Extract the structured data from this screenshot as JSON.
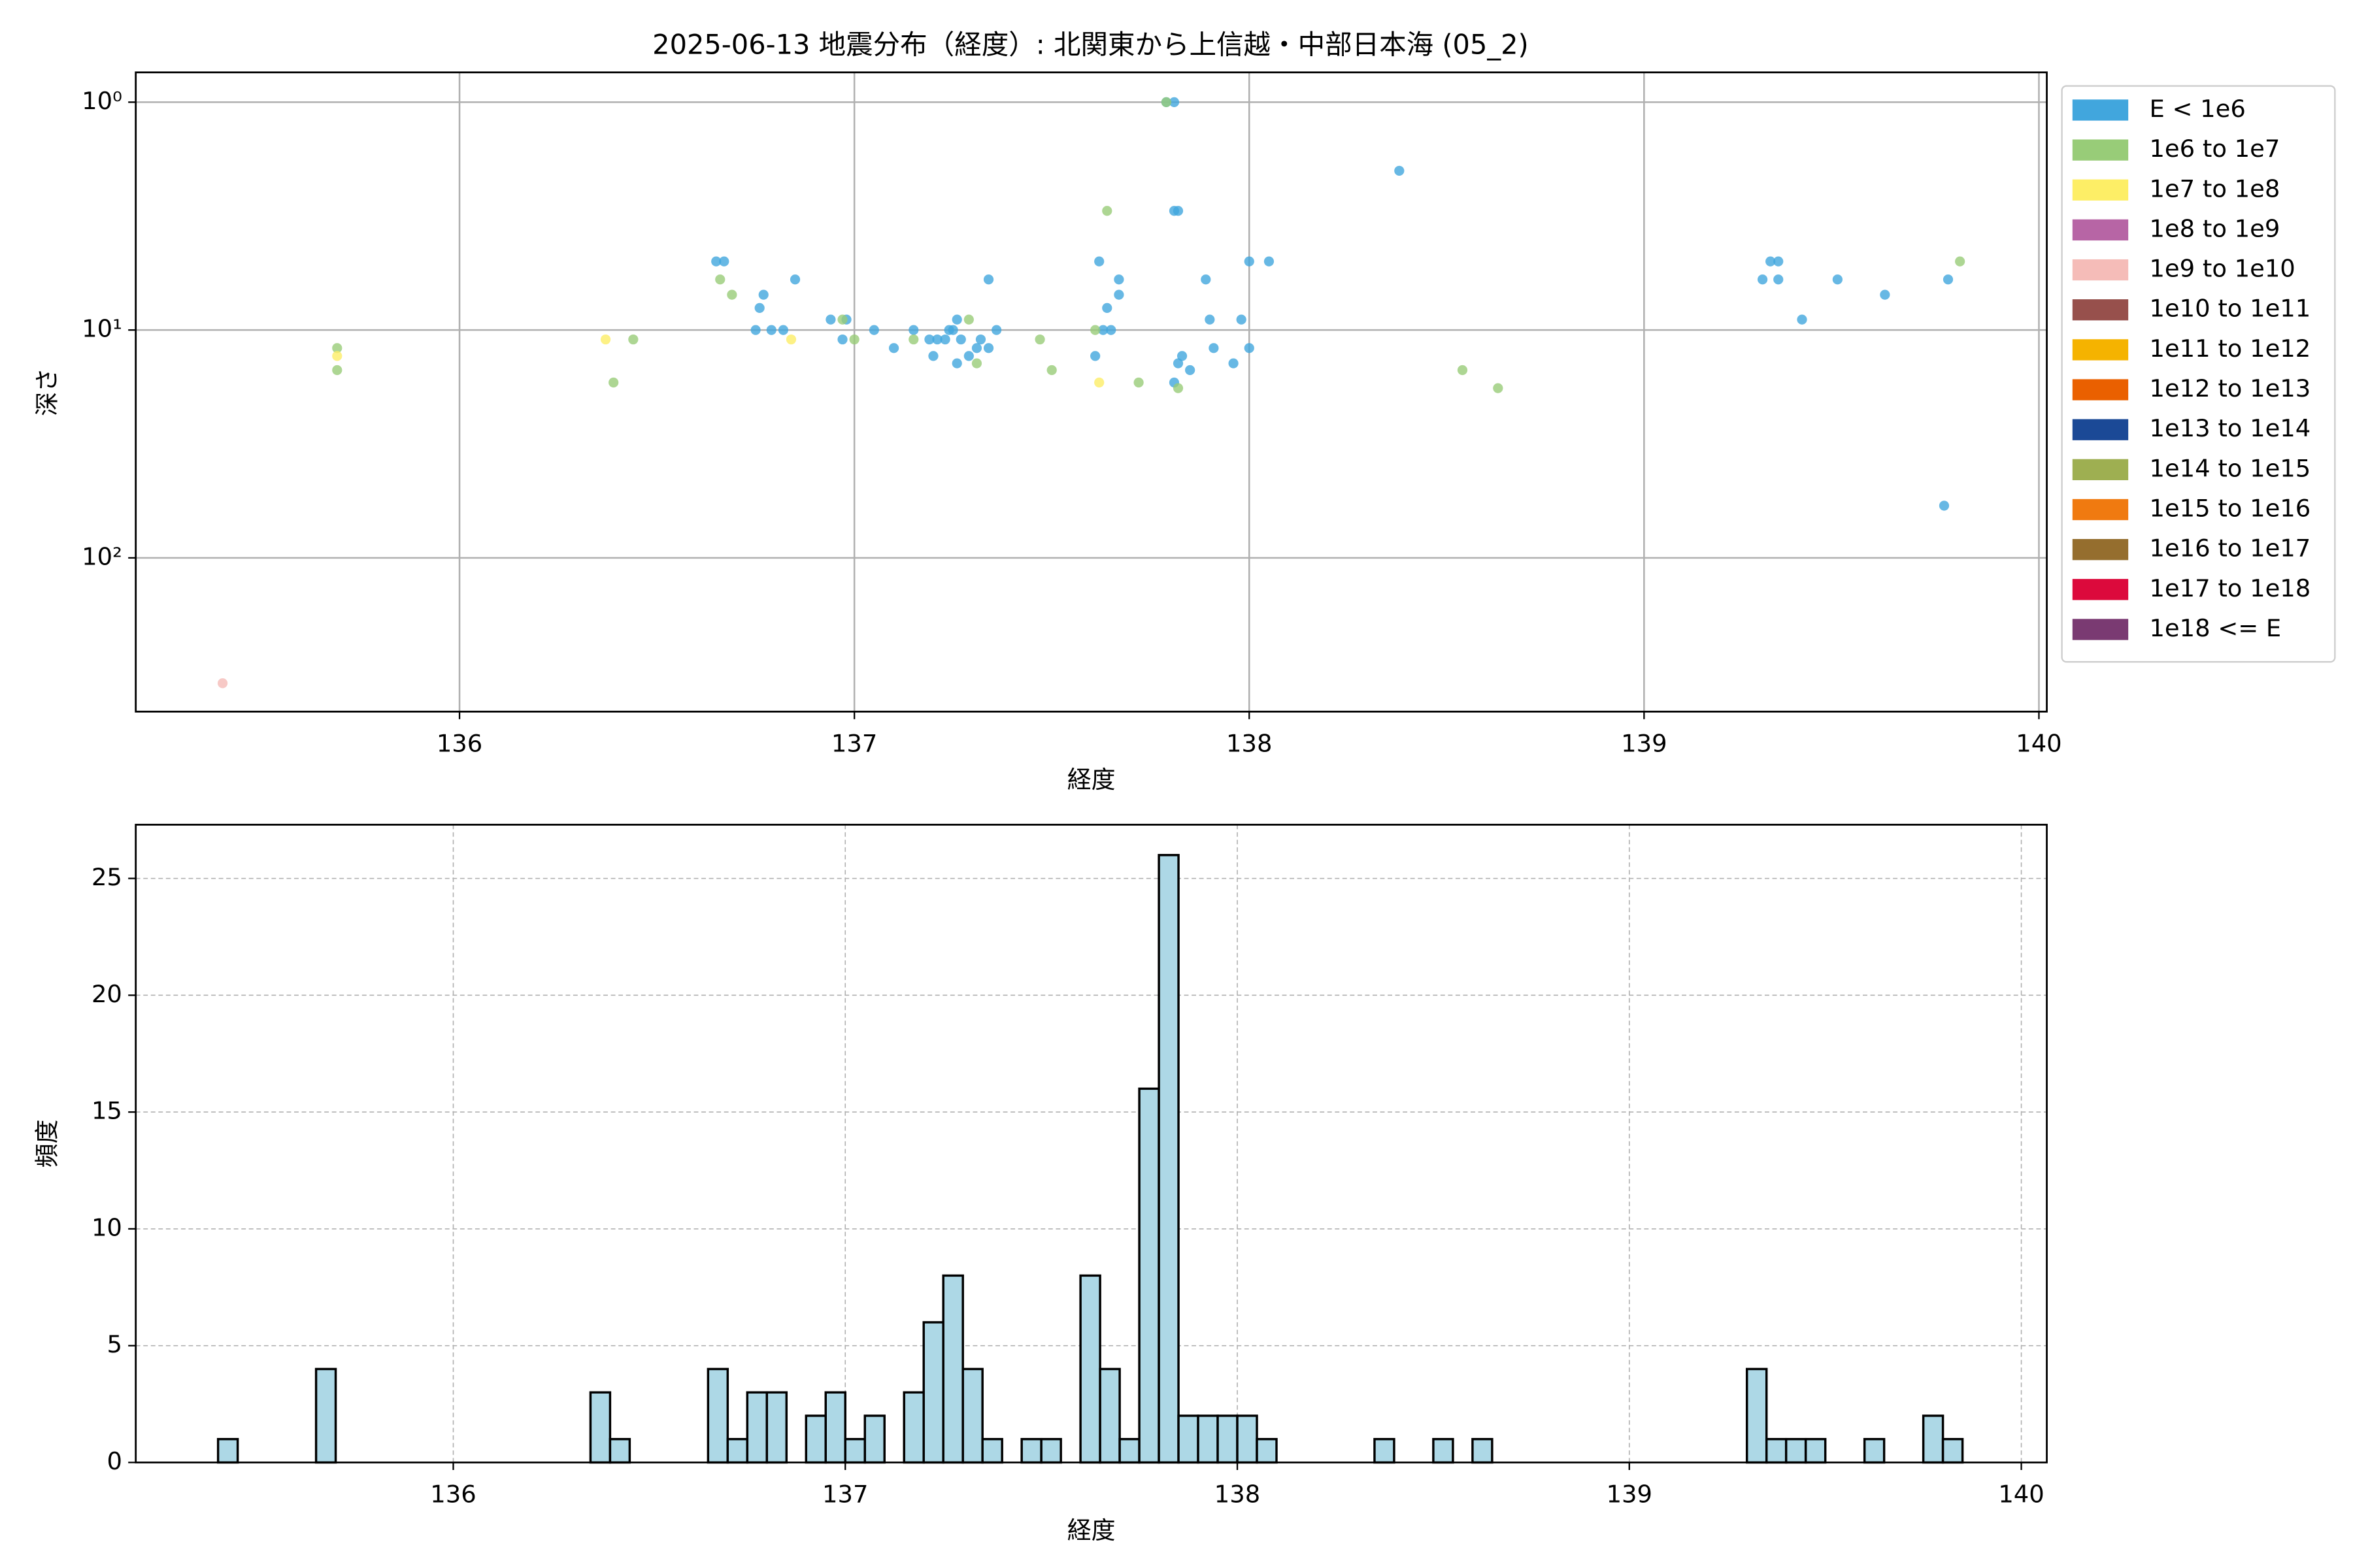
{
  "chart_data": [
    {
      "type": "scatter",
      "title": "2025-06-13 地震分布（経度）: 北関東から上信越・中部日本海 (05_2)",
      "x_label": "経度",
      "y_label": "深さ",
      "xlim": [
        135.18,
        140.02
      ],
      "ylim": [
        0.74,
        473
      ],
      "log_y": true,
      "y_inverted": true,
      "xticks": [
        136,
        137,
        138,
        139,
        140
      ],
      "yticks": [
        {
          "value": 1,
          "label": "10⁰"
        },
        {
          "value": 10,
          "label": "10¹"
        },
        {
          "value": 100,
          "label": "10²"
        }
      ],
      "grid": true,
      "legend": "outside-right",
      "series": [
        {
          "name": "E < 1e6",
          "color": "#41a6dd",
          "x": [
            136.65,
            136.67,
            136.76,
            136.77,
            136.75,
            136.79,
            136.82,
            136.85,
            136.94,
            136.97,
            136.98,
            137.05,
            137.1,
            137.15,
            137.19,
            137.21,
            137.23,
            137.24,
            137.25,
            137.26,
            137.27,
            137.26,
            137.29,
            137.31,
            137.32,
            137.34,
            137.34,
            137.36,
            137.2,
            137.62,
            137.61,
            137.63,
            137.64,
            137.65,
            137.67,
            137.67,
            137.79,
            137.81,
            137.81,
            137.82,
            137.81,
            137.83,
            137.82,
            137.85,
            137.89,
            137.9,
            137.91,
            137.96,
            137.98,
            138.0,
            138.0,
            138.05,
            138.38,
            139.3,
            139.32,
            139.34,
            139.34,
            139.4,
            139.49,
            139.61,
            139.77,
            139.76
          ],
          "y": [
            5,
            5,
            8,
            7,
            10,
            10,
            10,
            6,
            9,
            11,
            9,
            10,
            12,
            10,
            11,
            11,
            11,
            10,
            10,
            9,
            11,
            14,
            13,
            12,
            11,
            12,
            6,
            10,
            13,
            5,
            13,
            10,
            8,
            10,
            6,
            7,
            1,
            1,
            3,
            3,
            17,
            13,
            14,
            15,
            6,
            9,
            12,
            14,
            9,
            12,
            5,
            5,
            2,
            6,
            5,
            6,
            5,
            9,
            6,
            7,
            6,
            59
          ]
        },
        {
          "name": "1e6 to 1e7",
          "color": "#98cc78",
          "x": [
            135.69,
            135.69,
            136.39,
            136.44,
            136.66,
            136.69,
            136.97,
            137.0,
            137.15,
            137.29,
            137.31,
            137.47,
            137.5,
            137.61,
            137.64,
            137.72,
            137.79,
            137.82,
            138.54,
            138.63,
            139.8
          ],
          "y": [
            12,
            15,
            17,
            11,
            6,
            7,
            9,
            11,
            11,
            9,
            14,
            11,
            15,
            10,
            3,
            17,
            1,
            18,
            15,
            18,
            5
          ]
        },
        {
          "name": "1e7 to 1e8",
          "color": "#fdee66",
          "x": [
            135.69,
            136.37,
            136.84,
            137.62
          ],
          "y": [
            13,
            11,
            11,
            17
          ]
        },
        {
          "name": "1e8 to 1e9",
          "color": "#b765a5",
          "x": [],
          "y": []
        },
        {
          "name": "1e9 to 1e10",
          "color": "#f5bcb8",
          "x": [
            135.4
          ],
          "y": [
            355
          ]
        },
        {
          "name": "1e10 to 1e11",
          "color": "#97504c",
          "x": [],
          "y": []
        },
        {
          "name": "1e11 to 1e12",
          "color": "#f5b300",
          "x": [],
          "y": []
        },
        {
          "name": "1e12 to 1e13",
          "color": "#ea6000",
          "x": [],
          "y": []
        },
        {
          "name": "1e13 to 1e14",
          "color": "#1b4996",
          "x": [],
          "y": []
        },
        {
          "name": "1e14 to 1e15",
          "color": "#9eaf51",
          "x": [],
          "y": []
        },
        {
          "name": "1e15 to 1e16",
          "color": "#f07a10",
          "x": [],
          "y": []
        },
        {
          "name": "1e16 to 1e17",
          "color": "#956e2e",
          "x": [],
          "y": []
        },
        {
          "name": "1e17 to 1e18",
          "color": "#dc0a3c",
          "x": [],
          "y": []
        },
        {
          "name": "1e18 <= E",
          "color": "#7a3a72",
          "x": [],
          "y": []
        }
      ]
    },
    {
      "type": "histogram",
      "x_label": "経度",
      "y_label": "頻度",
      "xlim": [
        135.19,
        140.065
      ],
      "ylim": [
        0,
        27.3
      ],
      "xticks": [
        136,
        137,
        138,
        139,
        140
      ],
      "yticks": [
        0,
        5,
        10,
        15,
        20,
        25
      ],
      "grid": true,
      "color": "#add8e6",
      "edgecolor": "#000000",
      "bins": [
        135.4,
        135.45,
        135.5,
        135.55,
        135.6,
        135.65,
        135.7,
        135.75,
        135.8,
        135.85,
        135.9,
        135.95,
        136,
        136.05,
        136.1,
        136.15,
        136.2,
        136.25,
        136.3,
        136.35,
        136.4,
        136.45,
        136.5,
        136.55,
        136.6,
        136.65,
        136.7,
        136.75,
        136.8,
        136.85,
        136.9,
        136.95,
        137,
        137.05,
        137.1,
        137.15,
        137.2,
        137.25,
        137.3,
        137.35,
        137.4,
        137.45,
        137.5,
        137.55,
        137.6,
        137.65,
        137.7,
        137.75,
        137.8,
        137.85,
        137.9,
        137.95,
        138,
        138.05,
        138.1,
        138.15,
        138.2,
        138.25,
        138.3,
        138.35,
        138.4,
        138.45,
        138.5,
        138.55,
        138.6,
        138.65,
        138.7,
        138.75,
        138.8,
        138.85,
        138.9,
        138.95,
        139,
        139.05,
        139.1,
        139.15,
        139.2,
        139.25,
        139.3,
        139.35,
        139.4,
        139.45,
        139.5,
        139.55,
        139.6,
        139.65,
        139.7,
        139.75,
        139.8,
        139.85
      ],
      "counts": [
        1,
        0,
        0,
        0,
        0,
        4,
        0,
        0,
        0,
        0,
        0,
        0,
        0,
        0,
        0,
        0,
        0,
        0,
        0,
        3,
        1,
        0,
        0,
        0,
        0,
        4,
        1,
        3,
        3,
        0,
        2,
        3,
        1,
        2,
        0,
        3,
        6,
        8,
        4,
        1,
        0,
        1,
        1,
        0,
        8,
        4,
        1,
        16,
        26,
        2,
        2,
        2,
        2,
        1,
        0,
        0,
        0,
        0,
        0,
        1,
        0,
        0,
        1,
        0,
        1,
        0,
        0,
        0,
        0,
        0,
        0,
        0,
        0,
        0,
        0,
        0,
        0,
        0,
        4,
        1,
        1,
        1,
        0,
        0,
        1,
        0,
        0,
        2,
        1
      ]
    }
  ]
}
